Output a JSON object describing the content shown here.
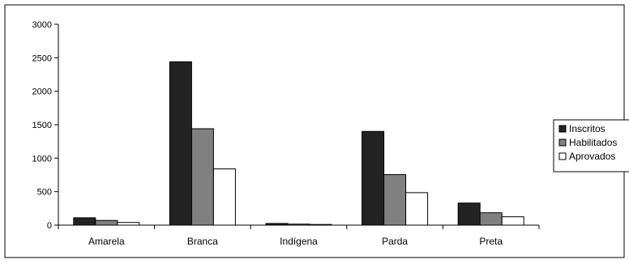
{
  "chart_data": {
    "type": "bar",
    "title": "",
    "xlabel": "",
    "ylabel": "",
    "categories": [
      "Amarela",
      "Branca",
      "Indígena",
      "Parda",
      "Preta"
    ],
    "series": [
      {
        "name": "Inscritos",
        "values": [
          110,
          2440,
          25,
          1400,
          330
        ],
        "color": "#222222"
      },
      {
        "name": "Habilitados",
        "values": [
          70,
          1440,
          15,
          755,
          185
        ],
        "color": "#808080"
      },
      {
        "name": "Aprovados",
        "values": [
          40,
          840,
          10,
          485,
          125
        ],
        "color": "#ffffff"
      }
    ],
    "yticks": [
      "0",
      "500",
      "1000",
      "1500",
      "2000",
      "2500",
      "3000"
    ],
    "ylim": [
      0,
      3000
    ],
    "grid": false,
    "legend_position": "right"
  }
}
